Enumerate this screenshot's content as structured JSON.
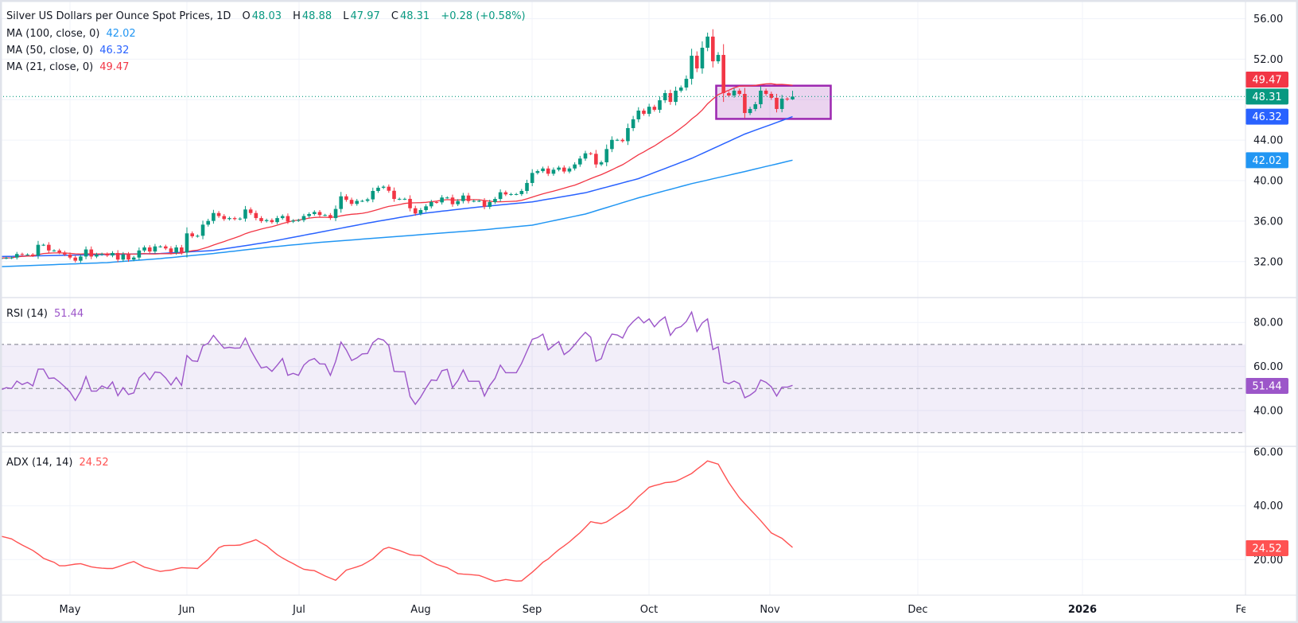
{
  "legend": {
    "symbol": "Silver US Dollars per Ounce Spot Prices, 1D",
    "open_label": "O",
    "open": "48.03",
    "high_label": "H",
    "high": "48.88",
    "low_label": "L",
    "low": "47.97",
    "close_label": "C",
    "close": "48.31",
    "change": "+0.28 (+0.58%)",
    "ma100_label": "MA (100, close, 0)",
    "ma100_value": "42.02",
    "ma50_label": "MA (50, close, 0)",
    "ma50_value": "46.32",
    "ma21_label": "MA (21, close, 0)",
    "ma21_value": "49.47",
    "rsi_label": "RSI (14)",
    "rsi_value": "51.44",
    "adx_label": "ADX (14, 14)",
    "adx_value": "24.52"
  },
  "colors": {
    "up": "#089981",
    "down": "#F23645",
    "ma100": "#2196F3",
    "ma50": "#2962FF",
    "ma21": "#F23645",
    "rsi": "#9C56C9",
    "adx": "#FF5252",
    "box_border": "#9C27B0",
    "box_fill": "rgba(156,39,176,0.2)",
    "grid": "#F0F3FA"
  },
  "time_axis": {
    "ticks": [
      "May",
      "Jun",
      "Jul",
      "Aug",
      "Sep",
      "Oct",
      "Nov",
      "Dec",
      "2026",
      "Feb"
    ]
  },
  "chart_data": [
    {
      "type": "candlestick",
      "title": "Silver US Dollars per Ounce Spot Prices, 1D",
      "y_ticks": [
        "56.00",
        "52.00",
        "44.00",
        "40.00",
        "36.00",
        "32.00"
      ],
      "ylim": [
        28.6,
        57.8
      ],
      "grid": true,
      "last_bar": {
        "open": 48.03,
        "high": 48.88,
        "low": 47.97,
        "close": 48.31
      },
      "price_labels": {
        "ma21": "49.47",
        "last": "48.31",
        "ma50": "46.32",
        "ma100": "42.02"
      },
      "close": [
        32.35,
        32.37,
        32.4,
        32.75,
        32.7,
        32.7,
        32.6,
        33.66,
        33.66,
        33.1,
        33.1,
        32.9,
        32.7,
        32.4,
        32.09,
        32.5,
        33.2,
        32.5,
        32.7,
        32.75,
        32.6,
        32.85,
        32.2,
        32.7,
        32.2,
        32.4,
        33.1,
        33.4,
        33.0,
        33.5,
        33.5,
        33.3,
        32.9,
        33.4,
        32.9,
        34.79,
        34.5,
        34.55,
        35.65,
        36.02,
        36.8,
        36.5,
        36.2,
        36.3,
        36.2,
        36.25,
        37.15,
        36.8,
        36.3,
        36.0,
        36.1,
        35.9,
        36.3,
        36.5,
        35.95,
        36.05,
        36.1,
        36.5,
        36.7,
        36.9,
        36.6,
        36.6,
        36.3,
        37.2,
        38.45,
        38.1,
        37.7,
        38.0,
        38.0,
        38.15,
        38.98,
        39.3,
        39.4,
        39.0,
        38.19,
        38.2,
        38.2,
        37.27,
        36.75,
        37.09,
        37.46,
        37.88,
        37.85,
        38.33,
        38.33,
        37.67,
        37.98,
        38.53,
        37.98,
        38.0,
        38.0,
        37.41,
        37.88,
        38.19,
        38.85,
        38.64,
        38.67,
        38.67,
        38.98,
        39.77,
        40.76,
        40.94,
        41.2,
        40.68,
        41.08,
        41.29,
        40.9,
        41.2,
        41.6,
        42.18,
        42.7,
        42.65,
        41.6,
        41.81,
        43.12,
        44.03,
        44.03,
        43.9,
        45.19,
        46.06,
        46.92,
        46.6,
        47.3,
        47.0,
        47.94,
        48.65,
        47.78,
        48.89,
        49.2,
        50.06,
        52.34,
        51.09,
        53.13,
        54.23,
        51.79,
        52.42,
        48.65,
        48.41,
        48.89,
        48.57,
        46.68,
        47.08,
        47.55,
        48.89,
        48.57,
        48.18,
        47.08,
        48.1,
        48.02,
        48.31
      ],
      "ma100_trend": [
        31.5,
        31.7,
        31.9,
        32.3,
        32.8,
        33.4,
        33.9,
        34.3,
        34.7,
        35.1,
        35.6,
        36.7,
        38.3,
        39.7,
        40.9,
        42.02
      ],
      "ma50_trend": [
        32.5,
        32.6,
        32.7,
        32.8,
        33.1,
        33.9,
        34.9,
        35.9,
        36.8,
        37.4,
        37.9,
        38.8,
        40.2,
        42.2,
        44.6,
        46.32
      ],
      "ma21_period": 21,
      "range_box": {
        "top": 49.38,
        "bottom": 46.1
      }
    },
    {
      "type": "line",
      "name": "RSI (14)",
      "y_ticks": [
        "80.00",
        "60.00",
        "40.00"
      ],
      "bands": [
        70,
        50,
        30
      ],
      "values": [
        49.4,
        50.4,
        50,
        53.4,
        51.8,
        52.8,
        51.2,
        58.8,
        58.8,
        54.6,
        54.8,
        53,
        50.8,
        48.4,
        44.6,
        48.8,
        55.4,
        48.8,
        48.8,
        51.2,
        50,
        53,
        46.7,
        50.4,
        47.3,
        48,
        54.8,
        57.2,
        53.9,
        57.5,
        57.2,
        54.8,
        51.6,
        55,
        51.4,
        65,
        62.6,
        62.3,
        69.3,
        70.5,
        74.1,
        71.1,
        68.3,
        68.7,
        68.3,
        68.4,
        72.9,
        67.5,
        63.3,
        59.3,
        59.9,
        57.8,
        60.6,
        63.6,
        56,
        56.9,
        56,
        60.6,
        62.7,
        63.6,
        61.2,
        61.1,
        56,
        62.3,
        71.1,
        67.5,
        62.7,
        63.9,
        65.7,
        65.9,
        70.8,
        72.7,
        72,
        69.5,
        57.8,
        57.6,
        57.6,
        46.4,
        42.8,
        46.1,
        50.2,
        53.9,
        53.6,
        58.1,
        58.7,
        50.4,
        53.6,
        58.4,
        53.3,
        53.3,
        53.3,
        46.6,
        51.4,
        54.6,
        60.6,
        57.2,
        57.2,
        57.2,
        61.4,
        66.9,
        72.3,
        73.1,
        74.7,
        67.5,
        69.5,
        71.3,
        65.4,
        67.2,
        69.9,
        72.9,
        75.5,
        73.3,
        62.4,
        63.5,
        70.5,
        74.7,
        74.3,
        72.9,
        77.7,
        80.4,
        82.5,
        79.8,
        81.6,
        78,
        80.7,
        82.5,
        74.1,
        77.3,
        78.1,
        80.4,
        84.7,
        75.9,
        79.8,
        81.6,
        67.7,
        68.9,
        53,
        52.2,
        53.4,
        52.2,
        45.8,
        47,
        48.8,
        53.9,
        52.8,
        50.8,
        46.6,
        50.6,
        50.6,
        51.44
      ],
      "last_label": "51.44"
    },
    {
      "type": "line",
      "name": "ADX (14, 14)",
      "y_ticks": [
        "60.00",
        "40.00",
        "20.00"
      ],
      "values": [
        28.7,
        28.2,
        27.7,
        26.5,
        25.4,
        24.4,
        23.4,
        22,
        20.5,
        19.7,
        19,
        17.7,
        17.7,
        18,
        18.3,
        18.5,
        17.9,
        17.3,
        17,
        16.8,
        16.7,
        16.7,
        17.3,
        18,
        18.7,
        19.3,
        18.2,
        17.2,
        16.7,
        16.1,
        15.6,
        15.9,
        16.1,
        16.6,
        17,
        16.9,
        16.8,
        16.7,
        18.4,
        20,
        22.2,
        24.4,
        25.2,
        25.3,
        25.3,
        25.4,
        26.1,
        26.7,
        27.4,
        26.2,
        25.1,
        23.4,
        21.8,
        20.6,
        19.5,
        18.5,
        17.4,
        16.4,
        16.1,
        15.9,
        14.9,
        13.9,
        13.1,
        12.3,
        14.2,
        16.1,
        16.7,
        17.3,
        18,
        19.1,
        20.3,
        22.1,
        23.9,
        24.6,
        24,
        23.4,
        22.6,
        21.8,
        21.6,
        21.5,
        20.5,
        19.3,
        18.2,
        17.6,
        17,
        15.9,
        14.8,
        14.6,
        14.5,
        14.3,
        14.1,
        13.4,
        12.6,
        11.9,
        12.2,
        12.6,
        12.3,
        12,
        12.1,
        13.7,
        15.3,
        17.1,
        19,
        20.2,
        22,
        23.7,
        25.1,
        26.6,
        28.3,
        30,
        32,
        34.1,
        33.7,
        33.4,
        34,
        35.3,
        36.7,
        38,
        39.3,
        41.3,
        43.4,
        45.1,
        46.9,
        47.5,
        48,
        48.6,
        48.8,
        49.1,
        50,
        51,
        52,
        53.6,
        55.1,
        56.7,
        56.1,
        55.5,
        52,
        48.6,
        45.8,
        43,
        40.8,
        38.7,
        36.6,
        34.5,
        32.2,
        29.9,
        28.9,
        27.9,
        26.2,
        24.52
      ],
      "last_label": "24.52"
    }
  ]
}
